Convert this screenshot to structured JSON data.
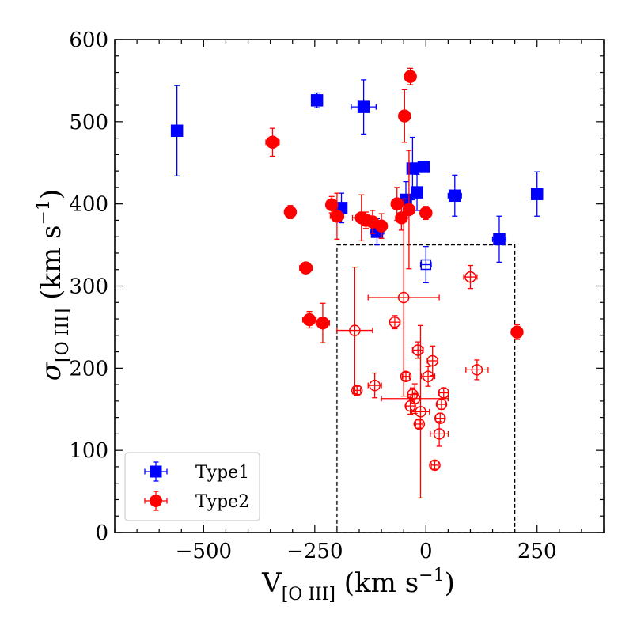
{
  "chart_data": {
    "type": "scatter",
    "xlabel": "V[O III] (km s^-1)",
    "ylabel": "σ[O III] (km s^-1)",
    "xlim": [
      -700,
      400
    ],
    "ylim": [
      0,
      600
    ],
    "xticks": [
      -500,
      -250,
      0,
      250
    ],
    "xtick_labels": [
      "−500",
      "−250",
      "0",
      "250"
    ],
    "yticks": [
      0,
      100,
      200,
      300,
      400,
      500,
      600
    ],
    "ytick_labels": [
      "0",
      "100",
      "200",
      "300",
      "400",
      "500",
      "600"
    ],
    "legend": {
      "position": "bottom-left",
      "entries": [
        "Type1",
        "Type2"
      ]
    },
    "selection_box": {
      "x": [
        -200,
        200
      ],
      "y": [
        0,
        350
      ]
    },
    "colors": {
      "type1": "#0000ff",
      "type2": "#ff0000"
    },
    "series": [
      {
        "name": "Type1",
        "marker": "square",
        "points": [
          {
            "x": -560,
            "y": 489,
            "xerr": 12,
            "yerr": 55,
            "filled": true
          },
          {
            "x": -245,
            "y": 526,
            "xerr": 10,
            "yerr": 9,
            "filled": true
          },
          {
            "x": -140,
            "y": 518,
            "xerr": 28,
            "yerr": 33,
            "filled": true
          },
          {
            "x": -190,
            "y": 395,
            "xerr": 10,
            "yerr": 18,
            "filled": true
          },
          {
            "x": -110,
            "y": 366,
            "xerr": 15,
            "yerr": 16,
            "filled": true
          },
          {
            "x": -30,
            "y": 443,
            "xerr": 8,
            "yerr": 38,
            "filled": true
          },
          {
            "x": -5,
            "y": 445,
            "xerr": 10,
            "yerr": 5,
            "filled": true
          },
          {
            "x": -20,
            "y": 414,
            "xerr": 10,
            "yerr": 22,
            "filled": true
          },
          {
            "x": -45,
            "y": 405,
            "xerr": 8,
            "yerr": 22,
            "filled": true
          },
          {
            "x": 65,
            "y": 410,
            "xerr": 15,
            "yerr": 25,
            "filled": true
          },
          {
            "x": 165,
            "y": 357,
            "xerr": 15,
            "yerr": 28,
            "filled": true
          },
          {
            "x": 250,
            "y": 412,
            "xerr": 10,
            "yerr": 27,
            "filled": true
          },
          {
            "x": 0,
            "y": 326,
            "xerr": 12,
            "yerr": 22,
            "filled": false
          }
        ]
      },
      {
        "name": "Type2",
        "marker": "circle",
        "points": [
          {
            "x": -345,
            "y": 475,
            "xerr": 15,
            "yerr": 17,
            "filled": true
          },
          {
            "x": -305,
            "y": 390,
            "xerr": 10,
            "yerr": 8,
            "filled": true
          },
          {
            "x": -270,
            "y": 322,
            "xerr": 14,
            "yerr": 6,
            "filled": true
          },
          {
            "x": -262,
            "y": 259,
            "xerr": 15,
            "yerr": 10,
            "filled": true
          },
          {
            "x": -232,
            "y": 255,
            "xerr": 15,
            "yerr": 24,
            "filled": true
          },
          {
            "x": -212,
            "y": 399,
            "xerr": 10,
            "yerr": 10,
            "filled": true
          },
          {
            "x": -200,
            "y": 385,
            "xerr": 15,
            "yerr": 28,
            "filled": true
          },
          {
            "x": -145,
            "y": 383,
            "xerr": 20,
            "yerr": 28,
            "filled": true
          },
          {
            "x": -135,
            "y": 380,
            "xerr": 15,
            "yerr": 10,
            "filled": true
          },
          {
            "x": -120,
            "y": 378,
            "xerr": 10,
            "yerr": 14,
            "filled": true
          },
          {
            "x": -100,
            "y": 373,
            "xerr": 12,
            "yerr": 15,
            "filled": true
          },
          {
            "x": -65,
            "y": 400,
            "xerr": 10,
            "yerr": 20,
            "filled": true
          },
          {
            "x": -55,
            "y": 383,
            "xerr": 10,
            "yerr": 15,
            "filled": true
          },
          {
            "x": -48,
            "y": 507,
            "xerr": 8,
            "yerr": 32,
            "filled": true
          },
          {
            "x": -38,
            "y": 393,
            "xerr": 8,
            "yerr": 72,
            "filled": true
          },
          {
            "x": -35,
            "y": 555,
            "xerr": 12,
            "yerr": 10,
            "filled": true
          },
          {
            "x": 0,
            "y": 389,
            "xerr": 12,
            "yerr": 8,
            "filled": true
          },
          {
            "x": 205,
            "y": 244,
            "xerr": 10,
            "yerr": 9,
            "filled": true
          },
          {
            "x": -160,
            "y": 246,
            "xerr": 40,
            "yerr": 77,
            "filled": false
          },
          {
            "x": -155,
            "y": 173,
            "xerr": 8,
            "yerr": 5,
            "filled": false
          },
          {
            "x": -115,
            "y": 179,
            "xerr": 15,
            "yerr": 15,
            "filled": false
          },
          {
            "x": -70,
            "y": 256,
            "xerr": 12,
            "yerr": 8,
            "filled": false
          },
          {
            "x": -50,
            "y": 286,
            "xerr": 80,
            "yerr": 120,
            "filled": false
          },
          {
            "x": -45,
            "y": 190,
            "xerr": 8,
            "yerr": 5,
            "filled": false
          },
          {
            "x": -35,
            "y": 154,
            "xerr": 10,
            "yerr": 10,
            "filled": false
          },
          {
            "x": -30,
            "y": 168,
            "xerr": 10,
            "yerr": 8,
            "filled": false
          },
          {
            "x": -25,
            "y": 163,
            "xerr": 75,
            "yerr": 18,
            "filled": false
          },
          {
            "x": -18,
            "y": 222,
            "xerr": 12,
            "yerr": 10,
            "filled": false
          },
          {
            "x": -15,
            "y": 132,
            "xerr": 8,
            "yerr": 5,
            "filled": false
          },
          {
            "x": -12,
            "y": 147,
            "xerr": 20,
            "yerr": 105,
            "filled": false
          },
          {
            "x": 5,
            "y": 190,
            "xerr": 15,
            "yerr": 12,
            "filled": false
          },
          {
            "x": 15,
            "y": 209,
            "xerr": 12,
            "yerr": 18,
            "filled": false
          },
          {
            "x": 20,
            "y": 82,
            "xerr": 8,
            "yerr": 5,
            "filled": false
          },
          {
            "x": 30,
            "y": 120,
            "xerr": 20,
            "yerr": 15,
            "filled": false
          },
          {
            "x": 32,
            "y": 139,
            "xerr": 10,
            "yerr": 6,
            "filled": false
          },
          {
            "x": 35,
            "y": 156,
            "xerr": 10,
            "yerr": 6,
            "filled": false
          },
          {
            "x": 40,
            "y": 170,
            "xerr": 10,
            "yerr": 6,
            "filled": false
          },
          {
            "x": 100,
            "y": 311,
            "xerr": 15,
            "yerr": 14,
            "filled": false
          },
          {
            "x": 115,
            "y": 198,
            "xerr": 25,
            "yerr": 12,
            "filled": false
          }
        ]
      }
    ]
  }
}
